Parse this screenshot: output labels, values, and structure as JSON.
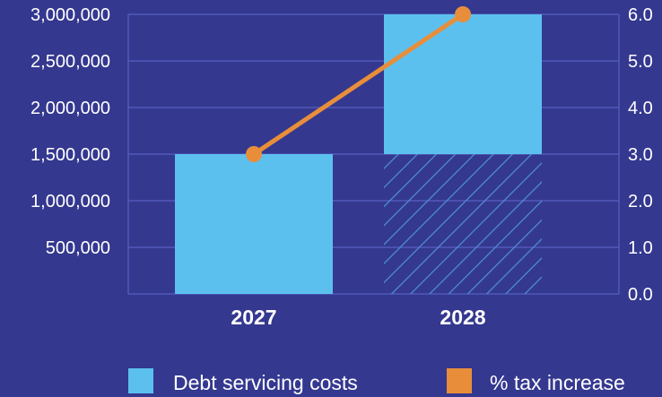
{
  "chart_data": {
    "type": "bar",
    "categories": [
      "2027",
      "2028"
    ],
    "series": [
      {
        "name": "Debt servicing costs",
        "type": "bar",
        "axis": "left",
        "values": [
          1500000,
          3000000
        ],
        "hatched_base_on_last_bar": 1500000
      },
      {
        "name": "% tax increase",
        "type": "line",
        "axis": "right",
        "values": [
          3.0,
          6.0
        ]
      }
    ],
    "y_left": {
      "ylim": [
        0,
        3000000
      ],
      "tick_values": [
        500000,
        1000000,
        1500000,
        2000000,
        2500000,
        3000000
      ],
      "tick_labels": [
        "500,000",
        "1,000,000",
        "1,500,000",
        "2,000,000",
        "2,500,000",
        "3,000,000"
      ]
    },
    "y_right": {
      "ylim": [
        0,
        6
      ],
      "tick_values": [
        0,
        1,
        2,
        3,
        4,
        5,
        6
      ],
      "tick_labels": [
        "0.0",
        "1.0",
        "2.0",
        "3.0",
        "4.0",
        "5.0",
        "6.0"
      ]
    },
    "grid": true,
    "legend_position": "bottom",
    "colors": {
      "background": "#34388f",
      "bar": "#5cc0ef",
      "line": "#e88e3a",
      "grid": "#5159b8",
      "text": "#ffffff",
      "hatch": "#4e8fd3"
    }
  }
}
